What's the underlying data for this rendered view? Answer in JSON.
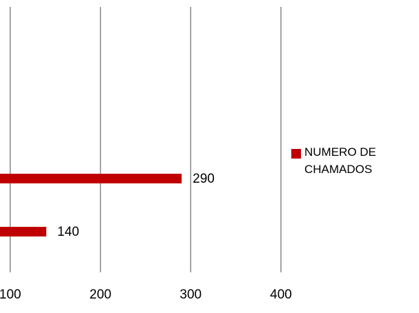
{
  "chart_data": {
    "type": "bar",
    "orientation": "horizontal",
    "categories": [
      null,
      null
    ],
    "series": [
      {
        "name": "NUMERO DE CHAMADOS",
        "color": "#c00000",
        "values": [
          140,
          290
        ]
      }
    ],
    "xlim": [
      0,
      400
    ],
    "xticks": [
      100,
      200,
      300,
      400
    ],
    "grid": true,
    "legend": "right"
  }
}
